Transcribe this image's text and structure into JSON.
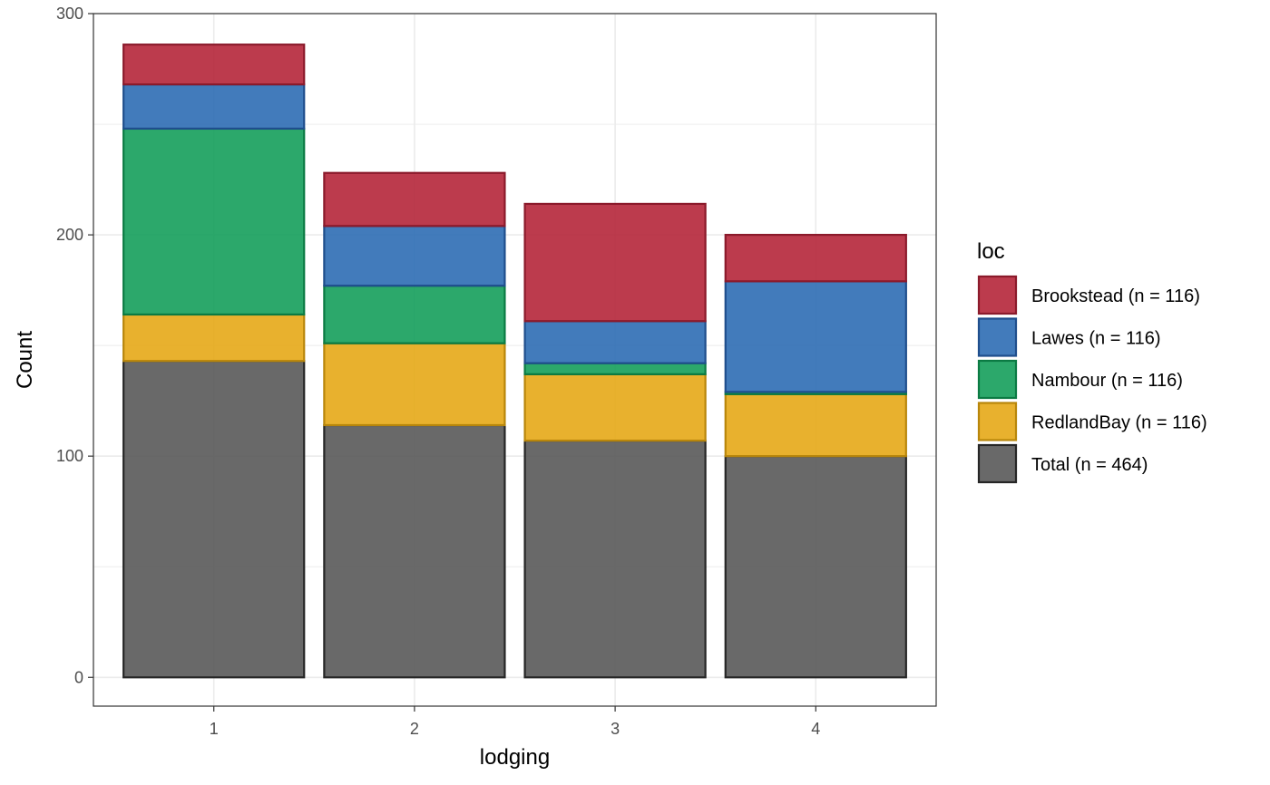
{
  "chart_data": {
    "type": "bar",
    "stacked": true,
    "xlabel": "lodging",
    "ylabel": "Count",
    "ylim": [
      -13,
      300
    ],
    "yticks": [
      0,
      100,
      200,
      300
    ],
    "categories": [
      "1",
      "2",
      "3",
      "4"
    ],
    "grid": true,
    "legend_position": "right",
    "legend_title": "loc",
    "series": [
      {
        "name": "Total (n = 464)",
        "color": "#595959",
        "stroke": "#262626",
        "values": [
          143,
          114,
          107,
          100
        ]
      },
      {
        "name": "RedlandBay (n = 116)",
        "color": "#E6A817",
        "stroke": "#B8860B",
        "values": [
          21,
          37,
          30,
          28
        ]
      },
      {
        "name": "Nambour (n = 116)",
        "color": "#159E5B",
        "stroke": "#0B7A43",
        "values": [
          84,
          26,
          5,
          1
        ]
      },
      {
        "name": "Lawes (n = 116)",
        "color": "#2E6DB4",
        "stroke": "#1F4E8C",
        "values": [
          20,
          27,
          19,
          50
        ]
      },
      {
        "name": "Brookstead (n = 116)",
        "color": "#B5263A",
        "stroke": "#8B1A2B",
        "values": [
          18,
          24,
          53,
          21
        ]
      }
    ],
    "legend_order": [
      "Brookstead (n = 116)",
      "Lawes (n = 116)",
      "Nambour (n = 116)",
      "RedlandBay (n = 116)",
      "Total (n = 464)"
    ]
  }
}
